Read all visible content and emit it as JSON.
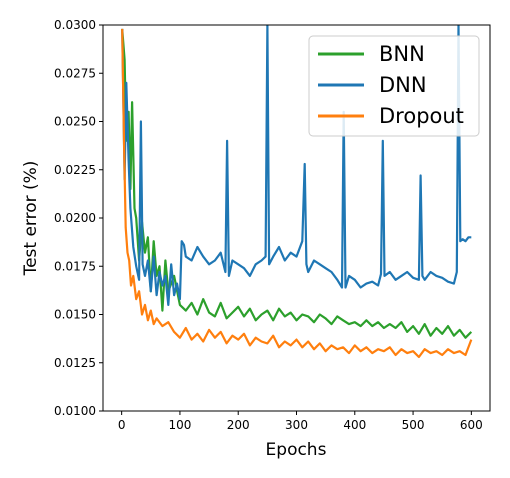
{
  "chart_data": {
    "type": "line",
    "title": "",
    "xlabel": "Epochs",
    "ylabel": "Test error (%)",
    "xlim": [
      -32,
      632
    ],
    "ylim": [
      0.01,
      0.03
    ],
    "x_ticks": [
      "0",
      "100",
      "200",
      "300",
      "400",
      "500",
      "600"
    ],
    "y_ticks": [
      "0.0100",
      "0.0125",
      "0.0150",
      "0.0175",
      "0.0200",
      "0.0225",
      "0.0250",
      "0.0275",
      "0.0300"
    ],
    "legend_position": "upper right",
    "grid": false,
    "legend": [
      "BNN",
      "DNN",
      "Dropout"
    ],
    "series": [
      {
        "name": "BNN",
        "color": "#2ca02c",
        "x": [
          1,
          5,
          8,
          12,
          15,
          18,
          22,
          25,
          30,
          35,
          40,
          45,
          50,
          55,
          60,
          65,
          70,
          75,
          80,
          90,
          100,
          110,
          120,
          130,
          140,
          150,
          160,
          170,
          180,
          190,
          200,
          210,
          220,
          230,
          240,
          250,
          260,
          270,
          280,
          290,
          300,
          310,
          320,
          330,
          340,
          350,
          360,
          370,
          380,
          390,
          400,
          410,
          420,
          430,
          440,
          450,
          460,
          470,
          480,
          490,
          500,
          510,
          520,
          530,
          540,
          550,
          560,
          570,
          580,
          590,
          600
        ],
        "y": [
          0.0298,
          0.0282,
          0.024,
          0.0255,
          0.0215,
          0.026,
          0.0205,
          0.02,
          0.0178,
          0.0198,
          0.0182,
          0.019,
          0.0162,
          0.0188,
          0.017,
          0.0175,
          0.0152,
          0.0178,
          0.0162,
          0.017,
          0.0155,
          0.0152,
          0.0156,
          0.015,
          0.0158,
          0.0151,
          0.0149,
          0.0156,
          0.0148,
          0.0151,
          0.0154,
          0.0149,
          0.0153,
          0.0147,
          0.015,
          0.0152,
          0.0147,
          0.0153,
          0.0149,
          0.0151,
          0.0147,
          0.015,
          0.0149,
          0.0146,
          0.015,
          0.0148,
          0.0145,
          0.0149,
          0.0147,
          0.0145,
          0.0146,
          0.0144,
          0.0147,
          0.0144,
          0.0146,
          0.0143,
          0.0145,
          0.0143,
          0.0146,
          0.0141,
          0.0144,
          0.014,
          0.0145,
          0.0139,
          0.0143,
          0.014,
          0.0144,
          0.0139,
          0.0142,
          0.0138,
          0.0141
        ]
      },
      {
        "name": "DNN",
        "color": "#1f77b4",
        "x": [
          1,
          5,
          8,
          12,
          15,
          20,
          25,
          30,
          33,
          36,
          40,
          45,
          50,
          55,
          60,
          65,
          70,
          75,
          80,
          85,
          90,
          95,
          100,
          103,
          107,
          110,
          120,
          130,
          140,
          150,
          160,
          170,
          178,
          181,
          184,
          190,
          200,
          210,
          220,
          230,
          240,
          247,
          250,
          253,
          260,
          270,
          280,
          290,
          300,
          310,
          314,
          317,
          320,
          330,
          340,
          350,
          360,
          370,
          378,
          381,
          384,
          390,
          400,
          410,
          420,
          430,
          440,
          445,
          448,
          451,
          460,
          470,
          480,
          490,
          500,
          510,
          513,
          516,
          520,
          530,
          540,
          550,
          560,
          570,
          575,
          578,
          581,
          585,
          590,
          595,
          600
        ],
        "y": [
          0.0298,
          0.022,
          0.027,
          0.023,
          0.0205,
          0.0185,
          0.0175,
          0.0168,
          0.025,
          0.0176,
          0.017,
          0.0178,
          0.0162,
          0.018,
          0.016,
          0.0172,
          0.0165,
          0.017,
          0.0155,
          0.0176,
          0.016,
          0.0166,
          0.0158,
          0.0188,
          0.0186,
          0.018,
          0.0178,
          0.0185,
          0.018,
          0.0176,
          0.0178,
          0.0182,
          0.0172,
          0.024,
          0.017,
          0.0178,
          0.0176,
          0.0174,
          0.017,
          0.0176,
          0.0178,
          0.018,
          0.03,
          0.0176,
          0.018,
          0.0185,
          0.0178,
          0.0182,
          0.018,
          0.0188,
          0.0228,
          0.0176,
          0.0172,
          0.0178,
          0.0176,
          0.0174,
          0.0172,
          0.0168,
          0.0164,
          0.0255,
          0.0164,
          0.017,
          0.0168,
          0.0164,
          0.0166,
          0.0167,
          0.0165,
          0.0171,
          0.024,
          0.017,
          0.0172,
          0.0168,
          0.017,
          0.0172,
          0.0169,
          0.0168,
          0.0222,
          0.017,
          0.0168,
          0.0172,
          0.017,
          0.0169,
          0.0167,
          0.0166,
          0.0172,
          0.03,
          0.0188,
          0.0189,
          0.0188,
          0.019,
          0.019
        ]
      },
      {
        "name": "Dropout",
        "color": "#ff7f0e",
        "x": [
          1,
          4,
          7,
          10,
          13,
          16,
          20,
          25,
          30,
          35,
          40,
          45,
          50,
          55,
          60,
          70,
          80,
          90,
          100,
          110,
          120,
          130,
          140,
          150,
          160,
          170,
          180,
          190,
          200,
          210,
          220,
          230,
          240,
          250,
          260,
          270,
          280,
          290,
          300,
          310,
          320,
          330,
          340,
          350,
          360,
          370,
          380,
          390,
          400,
          410,
          420,
          430,
          440,
          450,
          460,
          470,
          480,
          490,
          500,
          510,
          520,
          530,
          540,
          550,
          560,
          570,
          580,
          590,
          600
        ],
        "y": [
          0.0298,
          0.024,
          0.0195,
          0.0182,
          0.0178,
          0.0165,
          0.017,
          0.0158,
          0.0162,
          0.015,
          0.0155,
          0.0147,
          0.0152,
          0.0145,
          0.0148,
          0.0144,
          0.0146,
          0.0141,
          0.0138,
          0.0143,
          0.0137,
          0.014,
          0.0136,
          0.0142,
          0.0138,
          0.0141,
          0.0135,
          0.0139,
          0.0137,
          0.014,
          0.0134,
          0.0138,
          0.0136,
          0.0135,
          0.0139,
          0.0133,
          0.0136,
          0.0134,
          0.0137,
          0.0133,
          0.0136,
          0.0132,
          0.0135,
          0.0131,
          0.0134,
          0.0132,
          0.0133,
          0.013,
          0.0134,
          0.0131,
          0.0133,
          0.013,
          0.0132,
          0.0131,
          0.0133,
          0.0129,
          0.0132,
          0.013,
          0.0131,
          0.0128,
          0.0132,
          0.013,
          0.0131,
          0.0129,
          0.0132,
          0.013,
          0.0131,
          0.0129,
          0.0137
        ]
      }
    ]
  }
}
